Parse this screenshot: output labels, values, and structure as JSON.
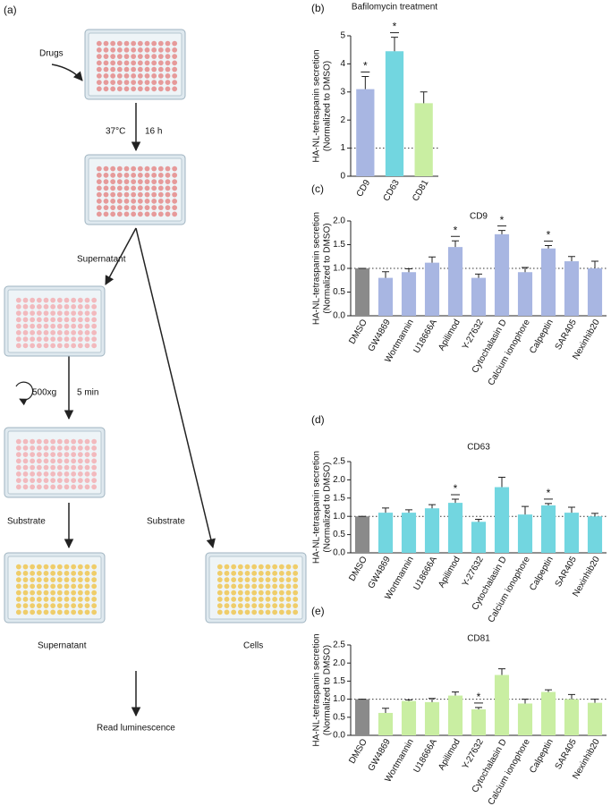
{
  "diagram": {
    "panel_label": "(a)",
    "drugs": "Drugs",
    "temp": "37°C",
    "time": "16 h",
    "supernatant_top": "Supernatant",
    "speed": "500xg",
    "spin_time": "5 min",
    "substrate_left": "Substrate",
    "substrate_right": "Substrate",
    "supernatant_bottom": "Supernatant",
    "cells": "Cells",
    "readout": "Read luminescence"
  },
  "chart_data": [
    {
      "type": "bar",
      "panel_label": "(b)",
      "title": "Bafilomycin treatment",
      "y_label": [
        "HA-NL-tetraspanin secretion",
        "(Normalized to DMSO)"
      ],
      "categories": [
        "CD9",
        "CD63",
        "CD81"
      ],
      "values": [
        3.1,
        4.45,
        2.6
      ],
      "errors": [
        0.45,
        0.5,
        0.4
      ],
      "colors": [
        "#a8b6e2",
        "#72d6e0",
        "#c9eea2"
      ],
      "significance": [
        "*",
        "*",
        null
      ],
      "reference_line": 1,
      "ylim": [
        0,
        5
      ],
      "yticks": [
        0,
        1,
        2,
        3,
        4,
        5
      ]
    },
    {
      "type": "bar",
      "panel_label": "(c)",
      "title": "CD9",
      "y_label": [
        "HA-NL-tetraspanin secretion",
        "(Normalized to DMSO)"
      ],
      "categories": [
        "DMSO",
        "GW4869",
        "Wortmannin",
        "U18666A",
        "Apilimod",
        "Y-27632",
        "Cytochalasin D",
        "Calcium ionophore",
        "Calpeptin",
        "SAR405",
        "Nexinhib20"
      ],
      "values": [
        1.0,
        0.8,
        0.92,
        1.12,
        1.45,
        0.8,
        1.72,
        0.92,
        1.42,
        1.15,
        1.0
      ],
      "errors": [
        0,
        0.13,
        0.07,
        0.12,
        0.13,
        0.08,
        0.08,
        0.1,
        0.06,
        0.1,
        0.15
      ],
      "colors": [
        "#8a8a8a",
        "#a8b6e2",
        "#a8b6e2",
        "#a8b6e2",
        "#a8b6e2",
        "#a8b6e2",
        "#a8b6e2",
        "#a8b6e2",
        "#a8b6e2",
        "#a8b6e2",
        "#a8b6e2"
      ],
      "significance": [
        null,
        null,
        null,
        null,
        "*",
        null,
        "*",
        null,
        "*",
        null,
        null
      ],
      "reference_line": 1,
      "ylim": [
        0,
        2
      ],
      "yticks": [
        {
          "value": 0,
          "label": "0.0"
        },
        {
          "value": 0.5,
          "label": "0.5"
        },
        {
          "value": 1,
          "label": "1.0"
        },
        {
          "value": 1.5,
          "label": "1.5"
        },
        {
          "value": 2,
          "label": "2.0"
        }
      ]
    },
    {
      "type": "bar",
      "panel_label": "(d)",
      "title": "CD63",
      "y_label": [
        "HA-NL-tetraspanin secretion",
        "(Normalized to DMSO)"
      ],
      "categories": [
        "DMSO",
        "GW4869",
        "Wortmannin",
        "U18666A",
        "Apilimod",
        "Y-27632",
        "Cytochalasin D",
        "Calcium ionophore",
        "Calpeptin",
        "SAR405",
        "Nexinhib20"
      ],
      "values": [
        1.0,
        1.1,
        1.1,
        1.22,
        1.37,
        0.85,
        1.8,
        1.05,
        1.3,
        1.1,
        1.0
      ],
      "errors": [
        0,
        0.13,
        0.08,
        0.1,
        0.1,
        0.07,
        0.27,
        0.22,
        0.05,
        0.15,
        0.08
      ],
      "colors": [
        "#8a8a8a",
        "#72d6e0",
        "#72d6e0",
        "#72d6e0",
        "#72d6e0",
        "#72d6e0",
        "#72d6e0",
        "#72d6e0",
        "#72d6e0",
        "#72d6e0",
        "#72d6e0"
      ],
      "significance": [
        null,
        null,
        null,
        null,
        "*",
        null,
        null,
        null,
        "*",
        null,
        null
      ],
      "reference_line": 1,
      "ylim": [
        0,
        2.5
      ],
      "yticks": [
        {
          "value": 0,
          "label": "0.0"
        },
        {
          "value": 0.5,
          "label": "0.5"
        },
        {
          "value": 1,
          "label": "1.0"
        },
        {
          "value": 1.5,
          "label": "1.5"
        },
        {
          "value": 2,
          "label": "2.0"
        },
        {
          "value": 2.5,
          "label": "2.5"
        }
      ]
    },
    {
      "type": "bar",
      "panel_label": "(e)",
      "title": "CD81",
      "y_label": [
        "HA-NL-tetraspanin secretion",
        "(Normalized to DMSO)"
      ],
      "categories": [
        "DMSO",
        "GW4869",
        "Wortmannin",
        "U18666A",
        "Apilimod",
        "Y-27632",
        "Cytochalasin D",
        "Calcium ionophore",
        "Calpeptin",
        "SAR405",
        "Nexinhib20"
      ],
      "values": [
        1.0,
        0.62,
        0.95,
        0.92,
        1.1,
        0.72,
        1.67,
        0.88,
        1.2,
        1.0,
        0.9
      ],
      "errors": [
        0,
        0.13,
        0.03,
        0.1,
        0.1,
        0.05,
        0.17,
        0.12,
        0.06,
        0.13,
        0.1
      ],
      "colors": [
        "#8a8a8a",
        "#c9eea2",
        "#c9eea2",
        "#c9eea2",
        "#c9eea2",
        "#c9eea2",
        "#c9eea2",
        "#c9eea2",
        "#c9eea2",
        "#c9eea2",
        "#c9eea2"
      ],
      "significance": [
        null,
        null,
        null,
        null,
        null,
        "*",
        null,
        null,
        null,
        null,
        null
      ],
      "reference_line": 1,
      "ylim": [
        0,
        2.5
      ],
      "yticks": [
        {
          "value": 0,
          "label": "0.0"
        },
        {
          "value": 0.5,
          "label": "0.5"
        },
        {
          "value": 1,
          "label": "1.0"
        },
        {
          "value": 1.5,
          "label": "1.5"
        },
        {
          "value": 2,
          "label": "2.0"
        },
        {
          "value": 2.5,
          "label": "2.5"
        }
      ]
    }
  ]
}
